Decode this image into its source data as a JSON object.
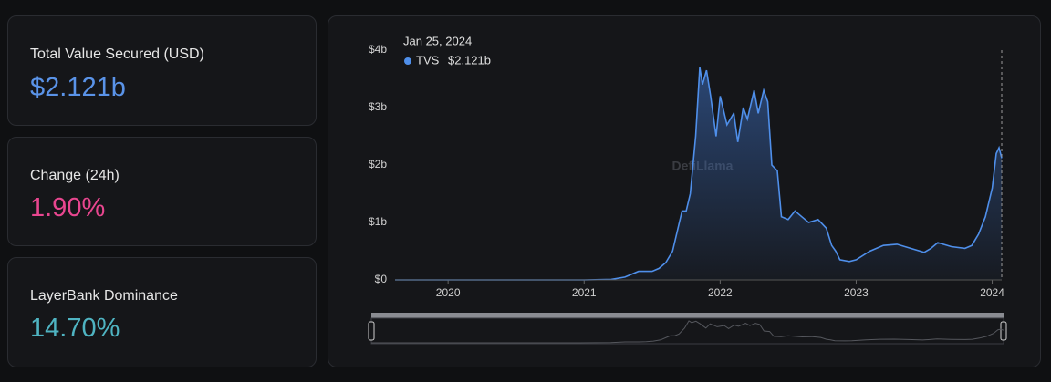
{
  "cards": [
    {
      "label": "Total Value Secured (USD)",
      "value": "$2.121b"
    },
    {
      "label": "Change (24h)",
      "value": "1.90%"
    },
    {
      "label": "LayerBank Dominance",
      "value": "14.70%"
    }
  ],
  "chart_data": {
    "type": "area",
    "watermark": "DefiLlama",
    "tooltip": {
      "date": "Jan 25, 2024",
      "value": "$2.121b"
    },
    "x": [
      2019.61,
      2021.0,
      2021.2,
      2021.3,
      2021.4,
      2021.5,
      2021.55,
      2021.6,
      2021.65,
      2021.7,
      2021.72,
      2021.75,
      2021.78,
      2021.82,
      2021.85,
      2021.87,
      2021.9,
      2021.93,
      2021.97,
      2022.0,
      2022.05,
      2022.1,
      2022.13,
      2022.17,
      2022.2,
      2022.25,
      2022.28,
      2022.32,
      2022.35,
      2022.38,
      2022.42,
      2022.45,
      2022.5,
      2022.55,
      2022.6,
      2022.65,
      2022.72,
      2022.78,
      2022.82,
      2022.85,
      2022.88,
      2022.95,
      2023.0,
      2023.1,
      2023.2,
      2023.3,
      2023.4,
      2023.5,
      2023.55,
      2023.6,
      2023.7,
      2023.8,
      2023.85,
      2023.9,
      2023.95,
      2024.0,
      2024.03,
      2024.05,
      2024.07
    ],
    "series": [
      {
        "name": "TVS",
        "color": "#4f8fea",
        "values": [
          0,
          0,
          0.01,
          0.05,
          0.15,
          0.15,
          0.2,
          0.3,
          0.5,
          1.0,
          1.2,
          1.2,
          1.5,
          2.5,
          3.7,
          3.4,
          3.65,
          3.2,
          2.5,
          3.2,
          2.7,
          2.9,
          2.4,
          3.0,
          2.8,
          3.3,
          2.9,
          3.3,
          3.1,
          2.0,
          1.9,
          1.1,
          1.05,
          1.2,
          1.1,
          1.0,
          1.05,
          0.9,
          0.6,
          0.5,
          0.35,
          0.32,
          0.35,
          0.5,
          0.6,
          0.62,
          0.55,
          0.48,
          0.55,
          0.65,
          0.58,
          0.55,
          0.6,
          0.8,
          1.1,
          1.6,
          2.2,
          2.3,
          2.121
        ]
      }
    ],
    "xlim": [
      2019.61,
      2024.07
    ],
    "ylim": [
      0,
      4
    ],
    "xticks": [
      2020,
      2021,
      2022,
      2023,
      2024
    ],
    "yticks": [
      {
        "value": 0,
        "label": "$0"
      },
      {
        "value": 1,
        "label": "$1b"
      },
      {
        "value": 2,
        "label": "$2b"
      },
      {
        "value": 3,
        "label": "$3b"
      },
      {
        "value": 4,
        "label": "$4b"
      }
    ]
  }
}
